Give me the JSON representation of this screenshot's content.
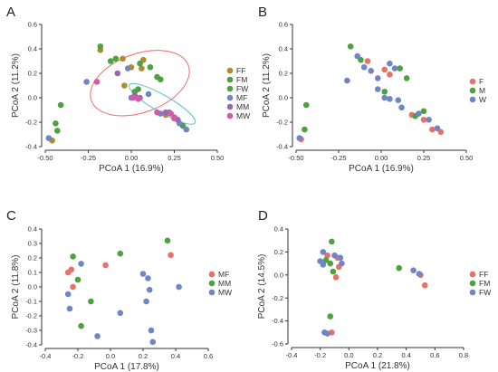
{
  "colors": {
    "red": "#e8706a",
    "olive": "#b08a2e",
    "green": "#4da13e",
    "blue": "#6f86c2",
    "purple": "#9a68b0",
    "pink": "#d45aa7",
    "ellipse_red": "#e8706a",
    "ellipse_teal": "#5bbfc4"
  },
  "chart_data": [
    {
      "panel": "A",
      "type": "scatter",
      "xlabel": "PCoA 1 (16.9%)",
      "ylabel": "PCoA 2 (11.2%)",
      "xlim": [
        -0.5,
        0.5
      ],
      "ylim": [
        -0.4,
        0.6
      ],
      "xticks": [
        "-0.50",
        "-0.25",
        "0.00",
        "0.25",
        "0.50"
      ],
      "xtick_values": [
        -0.5,
        -0.25,
        0,
        0.25,
        0.5
      ],
      "yticks": [
        "-0.4",
        "-0.2",
        "0.0",
        "0.2",
        "0.4",
        "0.6"
      ],
      "ytick_values": [
        -0.4,
        -0.2,
        0,
        0.2,
        0.4,
        0.6
      ],
      "legend_position": "right",
      "ellipses": [
        {
          "color": "ellipse_red",
          "cx": 0.05,
          "cy": 0.12,
          "rx": 0.3,
          "ry": 0.24,
          "angle": 20
        },
        {
          "color": "ellipse_teal",
          "cx": 0.18,
          "cy": -0.05,
          "rx": 0.22,
          "ry": 0.07,
          "angle": -30
        }
      ],
      "series": [
        {
          "name": "FF",
          "color": "olive",
          "points": [
            [
              -0.18,
              0.39
            ],
            [
              -0.05,
              0.32
            ],
            [
              0.07,
              0.31
            ],
            [
              0.0,
              0.25
            ],
            [
              0.06,
              0.24
            ],
            [
              -0.04,
              0.1
            ],
            [
              -0.46,
              -0.35
            ],
            [
              0.2,
              -0.14
            ],
            [
              0.25,
              -0.17
            ]
          ]
        },
        {
          "name": "FM",
          "color": "green",
          "points": [
            [
              -0.18,
              0.42
            ],
            [
              -0.12,
              0.3
            ],
            [
              0.11,
              0.25
            ],
            [
              0.15,
              0.17
            ],
            [
              0.04,
              0.07
            ],
            [
              -0.43,
              -0.27
            ],
            [
              -0.41,
              -0.06
            ],
            [
              0.3,
              -0.23
            ]
          ]
        },
        {
          "name": "FW",
          "color": "green",
          "points": [
            [
              -0.09,
              0.32
            ],
            [
              0.05,
              0.28
            ],
            [
              0.17,
              0.15
            ],
            [
              0.02,
              0.05
            ],
            [
              -0.44,
              -0.21
            ]
          ]
        },
        {
          "name": "MF",
          "color": "blue",
          "points": [
            [
              -0.26,
              0.13
            ],
            [
              -0.02,
              0.24
            ],
            [
              0.1,
              0.03
            ],
            [
              0.0,
              0.0
            ],
            [
              0.17,
              -0.13
            ],
            [
              0.28,
              -0.21
            ],
            [
              0.32,
              -0.26
            ],
            [
              -0.48,
              -0.33
            ],
            [
              0.22,
              -0.12
            ]
          ]
        },
        {
          "name": "MM",
          "color": "purple",
          "points": [
            [
              -0.08,
              0.2
            ],
            [
              0.02,
              0.02
            ],
            [
              0.05,
              0.0
            ],
            [
              0.2,
              -0.12
            ],
            [
              0.27,
              -0.18
            ]
          ]
        },
        {
          "name": "MW",
          "color": "pink",
          "points": [
            [
              -0.2,
              0.13
            ],
            [
              0.01,
              0.0
            ],
            [
              0.04,
              -0.01
            ],
            [
              0.15,
              -0.12
            ],
            [
              0.23,
              -0.13
            ],
            [
              0.25,
              -0.16
            ]
          ]
        }
      ]
    },
    {
      "panel": "B",
      "type": "scatter",
      "xlabel": "PCoA 1 (16.9%)",
      "ylabel": "PCoA 2 (11.2%)",
      "xlim": [
        -0.5,
        0.5
      ],
      "ylim": [
        -0.4,
        0.6
      ],
      "xticks": [
        "-0.50",
        "-0.25",
        "0.00",
        "0.25",
        "0.50"
      ],
      "xtick_values": [
        -0.5,
        -0.25,
        0,
        0.25,
        0.5
      ],
      "yticks": [
        "-0.4",
        "-0.2",
        "0.0",
        "0.2",
        "0.4",
        "0.6"
      ],
      "ytick_values": [
        -0.4,
        -0.2,
        0,
        0.2,
        0.4,
        0.6
      ],
      "legend_position": "right",
      "series": [
        {
          "name": "F",
          "color": "red",
          "points": [
            [
              -0.08,
              0.3
            ],
            [
              0.02,
              0.23
            ],
            [
              0.05,
              0.19
            ],
            [
              0.18,
              -0.14
            ],
            [
              0.25,
              -0.18
            ],
            [
              0.3,
              -0.26
            ],
            [
              -0.47,
              -0.34
            ],
            [
              0.35,
              -0.28
            ]
          ]
        },
        {
          "name": "M",
          "color": "green",
          "points": [
            [
              -0.18,
              0.42
            ],
            [
              -0.12,
              0.31
            ],
            [
              0.11,
              0.24
            ],
            [
              0.15,
              0.16
            ],
            [
              -0.44,
              -0.06
            ],
            [
              -0.45,
              -0.26
            ],
            [
              0.02,
              0.05
            ],
            [
              0.25,
              -0.11
            ],
            [
              0.2,
              -0.15
            ]
          ]
        },
        {
          "name": "W",
          "color": "blue",
          "points": [
            [
              -0.2,
              0.14
            ],
            [
              -0.14,
              0.34
            ],
            [
              -0.1,
              0.25
            ],
            [
              -0.06,
              0.22
            ],
            [
              -0.02,
              0.16
            ],
            [
              0.05,
              0.28
            ],
            [
              0.08,
              0.24
            ],
            [
              0.02,
              0.0
            ],
            [
              0.05,
              -0.01
            ],
            [
              0.1,
              -0.02
            ],
            [
              0.12,
              -0.08
            ],
            [
              0.22,
              -0.13
            ],
            [
              0.28,
              -0.18
            ],
            [
              0.33,
              -0.25
            ],
            [
              -0.48,
              -0.33
            ],
            [
              -0.02,
              0.07
            ]
          ]
        }
      ]
    },
    {
      "panel": "C",
      "type": "scatter",
      "xlabel": "PCoA 1 (17.8%)",
      "ylabel": "PCoA 2 (11.8%)",
      "xlim": [
        -0.4,
        0.6
      ],
      "ylim": [
        -0.4,
        0.4
      ],
      "xticks": [
        "-0.4",
        "-0.2",
        "0.0",
        "0.2",
        "0.4",
        "0.6"
      ],
      "xtick_values": [
        -0.4,
        -0.2,
        0,
        0.2,
        0.4,
        0.6
      ],
      "yticks": [
        "-0.4",
        "-0.3",
        "-0.2",
        "-0.1",
        "0.0",
        "0.1",
        "0.2",
        "0.3",
        "0.4"
      ],
      "ytick_values": [
        -0.4,
        -0.3,
        -0.2,
        -0.1,
        0,
        0.1,
        0.2,
        0.3,
        0.4
      ],
      "legend_position": "right",
      "series": [
        {
          "name": "MF",
          "color": "red",
          "points": [
            [
              -0.26,
              0.1
            ],
            [
              -0.24,
              0.12
            ],
            [
              -0.23,
              0.0
            ],
            [
              -0.03,
              0.15
            ],
            [
              0.37,
              0.22
            ]
          ]
        },
        {
          "name": "MM",
          "color": "green",
          "points": [
            [
              -0.23,
              0.21
            ],
            [
              -0.2,
              0.05
            ],
            [
              -0.12,
              -0.1
            ],
            [
              0.06,
              0.23
            ],
            [
              0.35,
              0.32
            ],
            [
              -0.18,
              -0.27
            ]
          ]
        },
        {
          "name": "MW",
          "color": "blue",
          "points": [
            [
              -0.26,
              -0.05
            ],
            [
              -0.25,
              -0.15
            ],
            [
              -0.18,
              0.16
            ],
            [
              -0.08,
              -0.34
            ],
            [
              0.06,
              -0.18
            ],
            [
              0.2,
              0.09
            ],
            [
              0.23,
              0.06
            ],
            [
              0.22,
              -0.1
            ],
            [
              0.25,
              -0.3
            ],
            [
              0.26,
              -0.38
            ],
            [
              0.42,
              0.0
            ],
            [
              0.24,
              -0.02
            ]
          ]
        }
      ]
    },
    {
      "panel": "D",
      "type": "scatter",
      "xlabel": "PCoA 1 (21.8%)",
      "ylabel": "PCoA 2 (14.5%)",
      "xlim": [
        -0.4,
        0.8
      ],
      "ylim": [
        -0.6,
        0.4
      ],
      "xticks": [
        "-0.4",
        "-0.2",
        "0.0",
        "0.2",
        "0.4",
        "0.6",
        "0.8"
      ],
      "xtick_values": [
        -0.4,
        -0.2,
        0,
        0.2,
        0.4,
        0.6,
        0.8
      ],
      "yticks": [
        "-0.6",
        "-0.4",
        "-0.2",
        "0.0",
        "0.2",
        "0.4"
      ],
      "ytick_values": [
        -0.6,
        -0.4,
        -0.2,
        0,
        0.2,
        0.4
      ],
      "legend_position": "right",
      "series": [
        {
          "name": "FF",
          "color": "red",
          "points": [
            [
              -0.15,
              0.17
            ],
            [
              -0.08,
              0.15
            ],
            [
              -0.07,
              0.07
            ],
            [
              -0.09,
              -0.02
            ],
            [
              0.5,
              0.0
            ],
            [
              0.53,
              -0.09
            ],
            [
              -0.12,
              -0.5
            ]
          ]
        },
        {
          "name": "FM",
          "color": "green",
          "points": [
            [
              -0.12,
              0.29
            ],
            [
              -0.16,
              0.13
            ],
            [
              -0.13,
              0.1
            ],
            [
              -0.11,
              0.03
            ],
            [
              -0.13,
              -0.36
            ],
            [
              0.35,
              0.06
            ]
          ]
        },
        {
          "name": "FW",
          "color": "blue",
          "points": [
            [
              -0.18,
              0.2
            ],
            [
              -0.2,
              0.12
            ],
            [
              -0.18,
              0.09
            ],
            [
              -0.1,
              0.17
            ],
            [
              -0.06,
              0.15
            ],
            [
              -0.05,
              0.1
            ],
            [
              0.45,
              0.04
            ],
            [
              0.49,
              0.01
            ],
            [
              -0.17,
              -0.5
            ],
            [
              -0.15,
              -0.51
            ]
          ]
        }
      ]
    }
  ]
}
